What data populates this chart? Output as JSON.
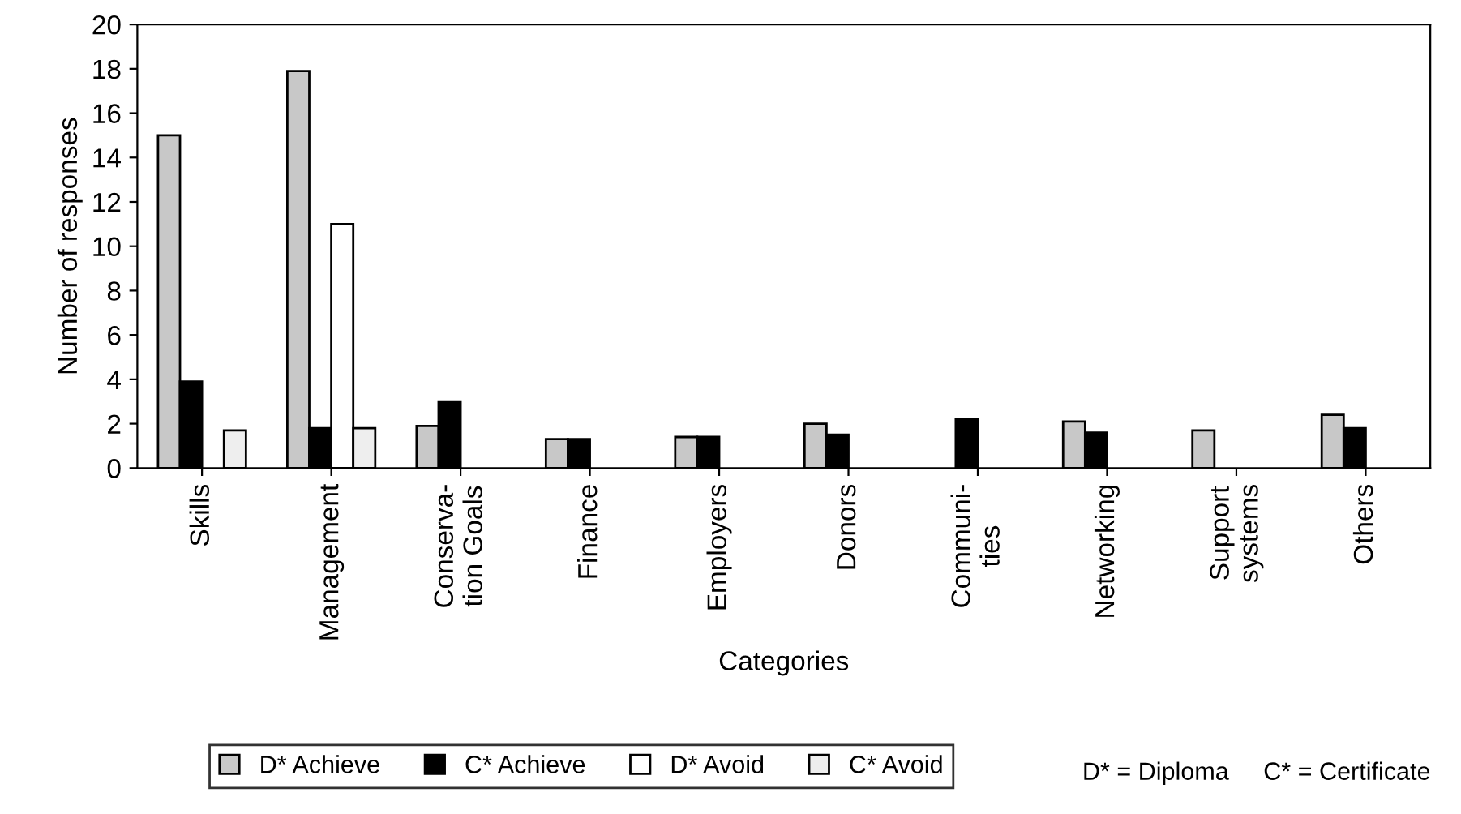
{
  "chart_data": {
    "type": "bar",
    "xlabel": "Categories",
    "ylabel": "Number of responses",
    "categories": [
      "Skills",
      "Management",
      "Conserva-\ntion Goals",
      "Finance",
      "Employers",
      "Donors",
      "Communi-\nties",
      "Networking",
      "Support\nsystems",
      "Others"
    ],
    "series": [
      {
        "name": "D* Achieve",
        "color": "#c8c8c8",
        "values": [
          15,
          17.9,
          1.9,
          1.3,
          1.4,
          2,
          null,
          2.1,
          1.7,
          2.4
        ]
      },
      {
        "name": "C* Achieve",
        "color": "#000000",
        "values": [
          3.9,
          1.8,
          3,
          1.3,
          1.4,
          1.5,
          2.2,
          1.6,
          null,
          1.8
        ]
      },
      {
        "name": "D* Avoid",
        "color": "#ffffff",
        "values": [
          null,
          11,
          null,
          null,
          null,
          null,
          null,
          null,
          null,
          null
        ]
      },
      {
        "name": "C* Avoid",
        "color": "#eeeeee",
        "values": [
          1.7,
          1.8,
          null,
          null,
          null,
          null,
          null,
          null,
          null,
          null
        ]
      }
    ],
    "ylim": [
      0,
      20
    ],
    "yticks": [
      0,
      2,
      4,
      6,
      8,
      10,
      12,
      14,
      16,
      18,
      20
    ],
    "grid": false,
    "legend": "bottom",
    "annotations": [
      "D* = Diploma     C* = Certificate"
    ]
  }
}
